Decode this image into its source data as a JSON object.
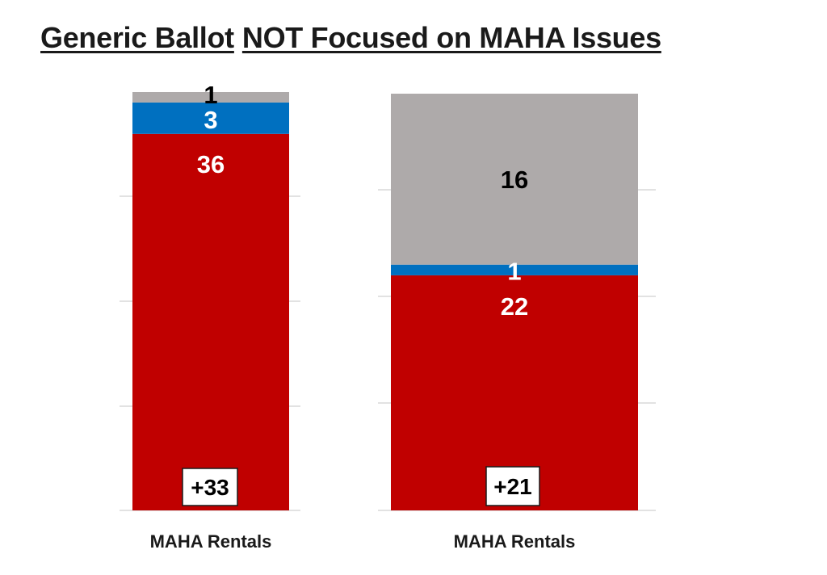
{
  "title": {
    "part1": "Generic Ballot",
    "part2": "NOT Focused on MAHA Issues"
  },
  "chart_data": [
    {
      "type": "bar",
      "stacked": true,
      "category": "MAHA Rentals",
      "net_label": "+33",
      "segments": [
        {
          "name": "Red",
          "value": 36,
          "label": "36",
          "color": "#c00000",
          "label_color": "#ffffff"
        },
        {
          "name": "Blue",
          "value": 3,
          "label": "3",
          "color": "#0070c0",
          "label_color": "#ffffff"
        },
        {
          "name": "Gray",
          "value": 1,
          "label": "1",
          "color": "#aeaaaa",
          "label_color": "#000000"
        }
      ],
      "ylim": [
        0,
        40
      ],
      "grid": true
    },
    {
      "type": "bar",
      "stacked": true,
      "category": "MAHA Rentals",
      "net_label": "+21",
      "segments": [
        {
          "name": "Red",
          "value": 22,
          "label": "22",
          "color": "#c00000",
          "label_color": "#ffffff"
        },
        {
          "name": "Blue",
          "value": 1,
          "label": "1",
          "color": "#0070c0",
          "label_color": "#ffffff"
        },
        {
          "name": "Gray",
          "value": 16,
          "label": "16",
          "color": "#aeaaaa",
          "label_color": "#000000"
        }
      ],
      "ylim": [
        0,
        39
      ],
      "grid": true
    }
  ]
}
